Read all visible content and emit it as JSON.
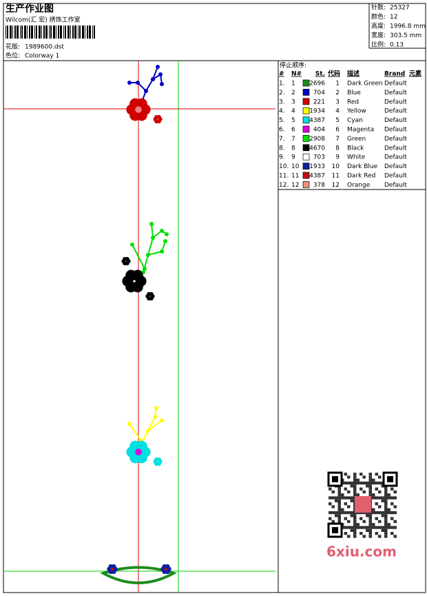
{
  "header": {
    "title": "生产作业图",
    "studio": "Wilcom(汇 宏) 绣饰工作室",
    "design_label": "花版:",
    "design": "1989600.dst",
    "colorway_label": "色位:",
    "colorway": "Colorway 1"
  },
  "stats": [
    {
      "label": "针数:",
      "value": "25327"
    },
    {
      "label": "颜色:",
      "value": "12"
    },
    {
      "label": "高度:",
      "value": "1996.8 mm"
    },
    {
      "label": "宽度:",
      "value": "303.5 mm"
    },
    {
      "label": "比例:",
      "value": "0.13"
    }
  ],
  "stop_sequence": {
    "title": "停止顺序:",
    "columns": [
      "#",
      "N#",
      "St.",
      "代码",
      "描述",
      "Brand",
      "元素"
    ],
    "rows": [
      {
        "index": "1.",
        "n": 1,
        "color": "#1e8c1e",
        "stitches": 2696,
        "code": 1,
        "description": "Dark Green",
        "brand": "Default"
      },
      {
        "index": "2.",
        "n": 2,
        "color": "#0000c0",
        "stitches": 704,
        "code": 2,
        "description": "Blue",
        "brand": "Default"
      },
      {
        "index": "3.",
        "n": 3,
        "color": "#d00000",
        "stitches": 221,
        "code": 3,
        "description": "Red",
        "brand": "Default"
      },
      {
        "index": "4.",
        "n": 4,
        "color": "#ffff00",
        "stitches": 1934,
        "code": 4,
        "description": "Yellow",
        "brand": "Default"
      },
      {
        "index": "5.",
        "n": 5,
        "color": "#00e0e0",
        "stitches": 4387,
        "code": 5,
        "description": "Cyan",
        "brand": "Default"
      },
      {
        "index": "6.",
        "n": 6,
        "color": "#e000e0",
        "stitches": 404,
        "code": 6,
        "description": "Magenta",
        "brand": "Default"
      },
      {
        "index": "7.",
        "n": 7,
        "color": "#00e000",
        "stitches": 2908,
        "code": 7,
        "description": "Green",
        "brand": "Default"
      },
      {
        "index": "8.",
        "n": 8,
        "color": "#000000",
        "stitches": 4670,
        "code": 8,
        "description": "Black",
        "brand": "Default"
      },
      {
        "index": "9.",
        "n": 9,
        "color": "#ffffff",
        "stitches": 703,
        "code": 9,
        "description": "White",
        "brand": "Default"
      },
      {
        "index": "10.",
        "n": 10,
        "color": "#1020a0",
        "stitches": 1933,
        "code": 10,
        "description": "Dark Blue",
        "brand": "Default"
      },
      {
        "index": "11.",
        "n": 11,
        "color": "#c01010",
        "stitches": 4387,
        "code": 11,
        "description": "Dark Red",
        "brand": "Default"
      },
      {
        "index": "12.",
        "n": 12,
        "color": "#f09080",
        "stitches": 378,
        "code": 12,
        "description": "Orange",
        "brand": "Default"
      }
    ]
  },
  "watermark": "6xiu.com"
}
